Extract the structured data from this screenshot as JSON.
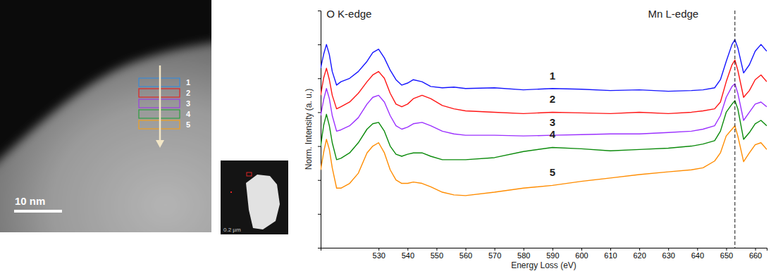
{
  "chart_data": [
    {
      "type": "image",
      "scale_bar": "10 nm",
      "inset_scale_bar": "0.2 µm",
      "regions": [
        {
          "label": "1",
          "color": "#3a8ad6"
        },
        {
          "label": "2",
          "color": "#e02424"
        },
        {
          "label": "3",
          "color": "#9b40e0"
        },
        {
          "label": "4",
          "color": "#2e9e3e"
        },
        {
          "label": "5",
          "color": "#f0a020"
        }
      ]
    },
    {
      "type": "line",
      "x_label": "Energy Loss (eV)",
      "y_label": "Norm. Intensity (a. u.)",
      "x": [
        510,
        511,
        512,
        513,
        514,
        515.5,
        517,
        520,
        523,
        526,
        528,
        530,
        532,
        534,
        536,
        538,
        540,
        542,
        545,
        548,
        552,
        556,
        560,
        570,
        580,
        590,
        600,
        610,
        620,
        630,
        638,
        642,
        646,
        648,
        650,
        652,
        653,
        654,
        656,
        658,
        660,
        662,
        664
      ],
      "series": [
        {
          "name": "1",
          "color": "#1414ff",
          "values": [
            265,
            285,
            300,
            285,
            260,
            240,
            245,
            250,
            260,
            275,
            288,
            293,
            280,
            262,
            248,
            240,
            243,
            248,
            245,
            238,
            236,
            237,
            235,
            236,
            233,
            235,
            234,
            232,
            233,
            231,
            232,
            233,
            236,
            248,
            275,
            300,
            307,
            295,
            258,
            270,
            290,
            300,
            290
          ]
        },
        {
          "name": "2",
          "color": "#ff1414",
          "values": [
            225,
            250,
            265,
            248,
            225,
            205,
            208,
            215,
            228,
            245,
            255,
            260,
            250,
            228,
            212,
            208,
            212,
            220,
            225,
            220,
            210,
            205,
            202,
            200,
            198,
            200,
            199,
            198,
            200,
            198,
            200,
            202,
            205,
            215,
            245,
            270,
            277,
            262,
            222,
            232,
            248,
            255,
            245
          ]
        },
        {
          "name": "3",
          "color": "#9b30ff",
          "values": [
            195,
            218,
            235,
            220,
            195,
            172,
            174,
            180,
            192,
            212,
            222,
            225,
            215,
            195,
            180,
            175,
            178,
            183,
            185,
            180,
            172,
            168,
            166,
            166,
            165,
            166,
            167,
            168,
            168,
            170,
            172,
            175,
            180,
            195,
            222,
            238,
            242,
            228,
            188,
            200,
            212,
            215,
            208
          ]
        },
        {
          "name": "4",
          "color": "#0a8a0a",
          "values": [
            150,
            180,
            197,
            180,
            155,
            130,
            132,
            140,
            155,
            175,
            183,
            185,
            172,
            150,
            138,
            135,
            138,
            140,
            140,
            135,
            130,
            130,
            130,
            133,
            142,
            148,
            146,
            143,
            145,
            147,
            150,
            153,
            158,
            172,
            200,
            212,
            217,
            205,
            160,
            170,
            183,
            188,
            180
          ]
        },
        {
          "name": "5",
          "color": "#ff8c00",
          "values": [
            115,
            140,
            160,
            145,
            118,
            88,
            88,
            95,
            110,
            140,
            150,
            155,
            140,
            115,
            100,
            95,
            95,
            97,
            95,
            90,
            82,
            78,
            77,
            82,
            88,
            92,
            98,
            103,
            108,
            112,
            115,
            118,
            128,
            140,
            165,
            175,
            180,
            165,
            127,
            140,
            152,
            155,
            145
          ]
        }
      ],
      "xlim": [
        510,
        664
      ],
      "xticks": [
        530,
        540,
        550,
        560,
        570,
        580,
        590,
        600,
        610,
        620,
        630,
        640,
        650,
        660
      ],
      "ylim": [
        0,
        350
      ],
      "yticks": [
        0,
        50,
        100,
        150,
        200,
        250,
        300,
        350
      ],
      "tick_labels": "x",
      "grid": false,
      "annotations": [
        {
          "text": "O K-edge",
          "x": 512,
          "y": 345
        },
        {
          "text": "Mn L-edge",
          "x": 623,
          "y": 345
        }
      ],
      "reference_lines": [
        {
          "x": 653,
          "line_style": "dashed"
        }
      ]
    }
  ]
}
